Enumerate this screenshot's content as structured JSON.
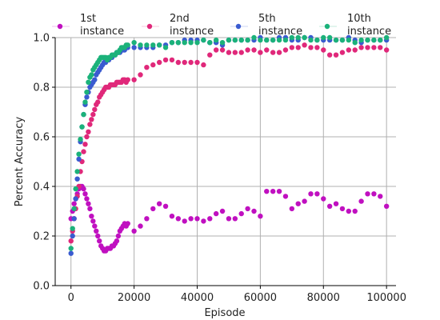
{
  "chart_data": {
    "type": "scatter",
    "title": "",
    "xlabel": "Episode",
    "ylabel": "Percent Accuracy",
    "xlim": [
      -5000,
      103000
    ],
    "ylim": [
      0.0,
      1.0
    ],
    "xticks": [
      0,
      20000,
      40000,
      60000,
      80000,
      100000
    ],
    "xtick_labels": [
      "0",
      "20000",
      "40000",
      "60000",
      "80000",
      "100000"
    ],
    "yticks": [
      0.0,
      0.2,
      0.4,
      0.6,
      0.8,
      1.0
    ],
    "ytick_labels": [
      "0.0",
      "0.2",
      "0.4",
      "0.6",
      "0.8",
      "1.0"
    ],
    "grid": true,
    "legend_position": "top",
    "series": [
      {
        "name": "1st instance",
        "legend_label": [
          "1st",
          "instance"
        ],
        "color": "#c010c0",
        "x": [
          0,
          500,
          1000,
          1500,
          2000,
          2500,
          3000,
          3500,
          4000,
          4500,
          5000,
          5500,
          6000,
          6500,
          7000,
          7500,
          8000,
          8500,
          9000,
          9500,
          10000,
          10500,
          11000,
          11500,
          12000,
          12500,
          13000,
          13500,
          14000,
          14500,
          15000,
          15500,
          16000,
          16500,
          17000,
          17500,
          18000,
          20000,
          22000,
          24000,
          26000,
          28000,
          30000,
          32000,
          34000,
          36000,
          38000,
          40000,
          42000,
          44000,
          46000,
          48000,
          50000,
          52000,
          54000,
          56000,
          58000,
          60000,
          62000,
          64000,
          66000,
          68000,
          70000,
          72000,
          74000,
          76000,
          78000,
          80000,
          82000,
          84000,
          86000,
          88000,
          90000,
          92000,
          94000,
          96000,
          98000,
          100000
        ],
        "y": [
          0.27,
          0.3,
          0.33,
          0.35,
          0.37,
          0.39,
          0.4,
          0.4,
          0.39,
          0.37,
          0.35,
          0.33,
          0.31,
          0.28,
          0.26,
          0.24,
          0.22,
          0.2,
          0.18,
          0.16,
          0.15,
          0.14,
          0.14,
          0.15,
          0.15,
          0.15,
          0.16,
          0.16,
          0.17,
          0.18,
          0.2,
          0.22,
          0.23,
          0.24,
          0.25,
          0.24,
          0.25,
          0.22,
          0.24,
          0.27,
          0.31,
          0.33,
          0.32,
          0.28,
          0.27,
          0.26,
          0.27,
          0.27,
          0.26,
          0.27,
          0.29,
          0.3,
          0.27,
          0.27,
          0.29,
          0.31,
          0.3,
          0.28,
          0.38,
          0.38,
          0.38,
          0.36,
          0.31,
          0.33,
          0.34,
          0.37,
          0.37,
          0.35,
          0.32,
          0.33,
          0.31,
          0.3,
          0.3,
          0.34,
          0.37,
          0.37,
          0.36,
          0.32
        ]
      },
      {
        "name": "2nd instance",
        "legend_label": [
          "2nd",
          "instance"
        ],
        "color": "#e0287a",
        "x": [
          0,
          500,
          1000,
          1500,
          2000,
          2500,
          3000,
          3500,
          4000,
          4500,
          5000,
          5500,
          6000,
          6500,
          7000,
          7500,
          8000,
          8500,
          9000,
          9500,
          10000,
          10500,
          11000,
          11500,
          12000,
          12500,
          13000,
          13500,
          14000,
          14500,
          15000,
          15500,
          16000,
          16500,
          17000,
          17500,
          18000,
          20000,
          22000,
          24000,
          26000,
          28000,
          30000,
          32000,
          34000,
          36000,
          38000,
          40000,
          42000,
          44000,
          46000,
          48000,
          50000,
          52000,
          54000,
          56000,
          58000,
          60000,
          62000,
          64000,
          66000,
          68000,
          70000,
          72000,
          74000,
          76000,
          78000,
          80000,
          82000,
          84000,
          86000,
          88000,
          90000,
          92000,
          94000,
          96000,
          98000,
          100000
        ],
        "y": [
          0.18,
          0.22,
          0.27,
          0.31,
          0.36,
          0.4,
          0.46,
          0.5,
          0.54,
          0.57,
          0.6,
          0.62,
          0.65,
          0.67,
          0.69,
          0.71,
          0.73,
          0.74,
          0.76,
          0.77,
          0.78,
          0.79,
          0.8,
          0.8,
          0.8,
          0.81,
          0.81,
          0.81,
          0.81,
          0.82,
          0.82,
          0.82,
          0.82,
          0.83,
          0.83,
          0.82,
          0.83,
          0.83,
          0.85,
          0.88,
          0.89,
          0.9,
          0.91,
          0.91,
          0.9,
          0.9,
          0.9,
          0.9,
          0.89,
          0.93,
          0.95,
          0.95,
          0.94,
          0.94,
          0.94,
          0.95,
          0.95,
          0.94,
          0.95,
          0.94,
          0.94,
          0.95,
          0.96,
          0.96,
          0.97,
          0.96,
          0.96,
          0.95,
          0.93,
          0.93,
          0.94,
          0.95,
          0.95,
          0.96,
          0.96,
          0.96,
          0.96,
          0.95
        ]
      },
      {
        "name": "5th instance",
        "legend_label": [
          "5th",
          "instance"
        ],
        "color": "#3a5bd0",
        "x": [
          0,
          500,
          1000,
          1500,
          2000,
          2500,
          3000,
          3500,
          4000,
          4500,
          5000,
          5500,
          6000,
          6500,
          7000,
          7500,
          8000,
          8500,
          9000,
          9500,
          10000,
          10500,
          11000,
          11500,
          12000,
          12500,
          13000,
          13500,
          14000,
          14500,
          15000,
          15500,
          16000,
          16500,
          17000,
          17500,
          18000,
          20000,
          22000,
          24000,
          26000,
          28000,
          30000,
          32000,
          34000,
          36000,
          38000,
          40000,
          42000,
          44000,
          46000,
          48000,
          50000,
          52000,
          54000,
          56000,
          58000,
          60000,
          62000,
          64000,
          66000,
          68000,
          70000,
          72000,
          74000,
          76000,
          78000,
          80000,
          82000,
          84000,
          86000,
          88000,
          90000,
          92000,
          94000,
          96000,
          98000,
          100000
        ],
        "y": [
          0.13,
          0.2,
          0.27,
          0.35,
          0.43,
          0.51,
          0.58,
          0.64,
          0.69,
          0.73,
          0.76,
          0.78,
          0.8,
          0.81,
          0.82,
          0.83,
          0.85,
          0.86,
          0.87,
          0.88,
          0.89,
          0.9,
          0.9,
          0.91,
          0.91,
          0.92,
          0.92,
          0.93,
          0.93,
          0.94,
          0.94,
          0.94,
          0.95,
          0.95,
          0.95,
          0.96,
          0.96,
          0.96,
          0.96,
          0.96,
          0.96,
          0.97,
          0.97,
          0.98,
          0.98,
          0.99,
          0.99,
          0.99,
          0.99,
          0.98,
          0.98,
          0.97,
          0.99,
          0.99,
          0.99,
          0.99,
          0.99,
          1.0,
          0.99,
          0.99,
          1.0,
          1.0,
          0.99,
          0.99,
          1.0,
          1.0,
          0.99,
          0.99,
          0.99,
          0.99,
          0.99,
          1.0,
          0.99,
          0.98,
          0.99,
          0.99,
          0.99,
          0.99
        ]
      },
      {
        "name": "10th instance",
        "legend_label": [
          "10th",
          "instance"
        ],
        "color": "#1bb27a",
        "x": [
          0,
          500,
          1000,
          1500,
          2000,
          2500,
          3000,
          3500,
          4000,
          4500,
          5000,
          5500,
          6000,
          6500,
          7000,
          7500,
          8000,
          8500,
          9000,
          9500,
          10000,
          10500,
          11000,
          11500,
          12000,
          12500,
          13000,
          13500,
          14000,
          14500,
          15000,
          15500,
          16000,
          16500,
          17000,
          17500,
          18000,
          20000,
          22000,
          24000,
          26000,
          28000,
          30000,
          32000,
          34000,
          36000,
          38000,
          40000,
          42000,
          44000,
          46000,
          48000,
          50000,
          52000,
          54000,
          56000,
          58000,
          60000,
          62000,
          64000,
          66000,
          68000,
          70000,
          72000,
          74000,
          76000,
          78000,
          80000,
          82000,
          84000,
          86000,
          88000,
          90000,
          92000,
          94000,
          96000,
          98000,
          100000
        ],
        "y": [
          0.15,
          0.23,
          0.31,
          0.39,
          0.46,
          0.53,
          0.59,
          0.64,
          0.69,
          0.74,
          0.78,
          0.82,
          0.84,
          0.85,
          0.87,
          0.88,
          0.89,
          0.9,
          0.91,
          0.92,
          0.92,
          0.92,
          0.92,
          0.91,
          0.92,
          0.92,
          0.93,
          0.93,
          0.93,
          0.94,
          0.94,
          0.95,
          0.96,
          0.96,
          0.96,
          0.97,
          0.97,
          0.98,
          0.97,
          0.97,
          0.97,
          0.97,
          0.96,
          0.98,
          0.98,
          0.98,
          0.98,
          0.98,
          0.99,
          0.98,
          0.99,
          0.98,
          0.99,
          0.99,
          0.99,
          0.99,
          1.0,
          0.99,
          0.99,
          0.99,
          0.99,
          0.99,
          1.0,
          1.0,
          1.0,
          0.99,
          0.99,
          1.0,
          1.0,
          0.99,
          0.99,
          0.99,
          0.98,
          0.99,
          0.99,
          0.99,
          0.99,
          1.0
        ]
      }
    ]
  }
}
